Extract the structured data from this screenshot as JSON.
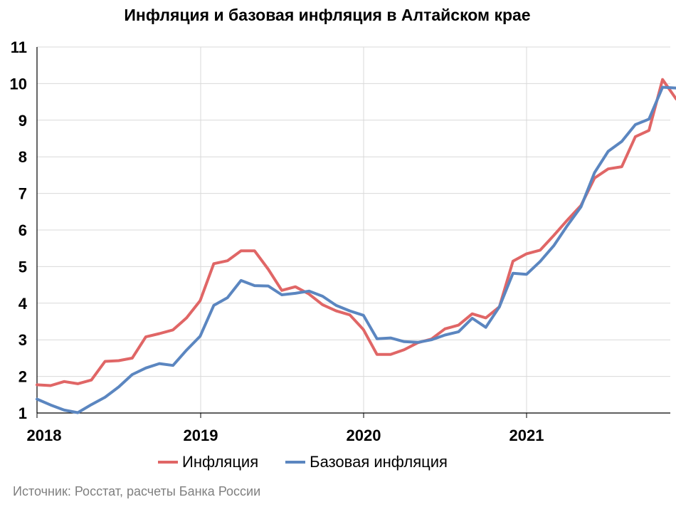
{
  "chart_data": {
    "type": "line",
    "title": "Инфляция и базовая инфляция в Алтайском крае",
    "xlabel": "",
    "ylabel": "",
    "ylim": [
      1,
      11
    ],
    "yticks": [
      "1",
      "2",
      "3",
      "4",
      "5",
      "6",
      "7",
      "8",
      "9",
      "10",
      "11"
    ],
    "xticks": [
      "2018",
      "2019",
      "2020",
      "2021"
    ],
    "grid": true,
    "legend_position": "bottom",
    "x": [
      "2018-01",
      "2018-02",
      "2018-03",
      "2018-04",
      "2018-05",
      "2018-06",
      "2018-07",
      "2018-08",
      "2018-09",
      "2018-10",
      "2018-11",
      "2018-12",
      "2019-01",
      "2019-02",
      "2019-03",
      "2019-04",
      "2019-05",
      "2019-06",
      "2019-07",
      "2019-08",
      "2019-09",
      "2019-10",
      "2019-11",
      "2019-12",
      "2020-01",
      "2020-02",
      "2020-03",
      "2020-04",
      "2020-05",
      "2020-06",
      "2020-07",
      "2020-08",
      "2020-09",
      "2020-10",
      "2020-11",
      "2020-12",
      "2021-01",
      "2021-02",
      "2021-03",
      "2021-04",
      "2021-05",
      "2021-06",
      "2021-07",
      "2021-08",
      "2021-09",
      "2021-10",
      "2021-11",
      "2021-12"
    ],
    "series": [
      {
        "name": "Инфляция",
        "color": "#e06666",
        "values": [
          1.77,
          1.75,
          1.86,
          1.8,
          1.9,
          2.41,
          2.43,
          2.5,
          3.08,
          3.17,
          3.27,
          3.6,
          4.07,
          5.08,
          5.16,
          5.43,
          5.43,
          4.93,
          4.35,
          4.45,
          4.25,
          3.96,
          3.79,
          3.68,
          3.28,
          2.6,
          2.6,
          2.73,
          2.92,
          3.02,
          3.3,
          3.4,
          3.71,
          3.6,
          3.9,
          5.15,
          5.35,
          5.45,
          5.85,
          6.27,
          6.67,
          7.42,
          7.67,
          7.73,
          8.55,
          8.72,
          10.11,
          9.58
        ]
      },
      {
        "name": "Базовая инфляция",
        "color": "#5b86c0",
        "values": [
          1.38,
          1.22,
          1.08,
          1.01,
          1.23,
          1.43,
          1.71,
          2.05,
          2.23,
          2.35,
          2.3,
          2.72,
          3.1,
          3.94,
          4.15,
          4.62,
          4.48,
          4.47,
          4.23,
          4.27,
          4.33,
          4.19,
          3.94,
          3.79,
          3.67,
          3.03,
          3.05,
          2.95,
          2.93,
          3.0,
          3.13,
          3.22,
          3.59,
          3.34,
          3.9,
          4.82,
          4.79,
          5.14,
          5.57,
          6.12,
          6.63,
          7.57,
          8.15,
          8.42,
          8.88,
          9.03,
          9.9,
          9.88
        ]
      }
    ]
  },
  "source": "Источник: Росстат, расчеты Банка России"
}
